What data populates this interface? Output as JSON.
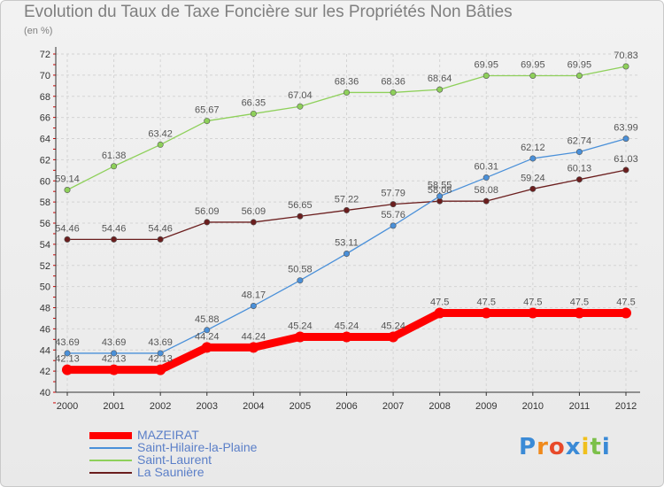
{
  "chart_data": {
    "type": "line",
    "title": "Evolution du Taux de Taxe Foncière sur les Propriétés Non Bâties",
    "subtitle": "(en %)",
    "x": [
      "2000",
      "2001",
      "2002",
      "2003",
      "2004",
      "2005",
      "2006",
      "2007",
      "2008",
      "2009",
      "2010",
      "2011",
      "2012"
    ],
    "ylim": [
      40,
      72
    ],
    "yticks": [
      40,
      42,
      44,
      46,
      48,
      50,
      52,
      54,
      56,
      58,
      60,
      62,
      64,
      66,
      68,
      70,
      72
    ],
    "grid": true,
    "legend_position": "bottom-left",
    "series": [
      {
        "name": "MAZEIRAT",
        "color": "#ff0000",
        "values": [
          42.13,
          42.13,
          42.13,
          44.24,
          44.24,
          45.24,
          45.24,
          45.24,
          47.5,
          47.5,
          47.5,
          47.5,
          47.5
        ]
      },
      {
        "name": "Saint-Hilaire-la-Plaine",
        "color": "#4a90d9",
        "values": [
          43.69,
          43.69,
          43.69,
          45.88,
          48.17,
          50.58,
          53.11,
          55.76,
          58.55,
          60.31,
          62.12,
          62.74,
          63.99
        ]
      },
      {
        "name": "Saint-Laurent",
        "color": "#8ed05a",
        "values": [
          59.14,
          61.38,
          63.42,
          65.67,
          66.35,
          67.04,
          68.36,
          68.36,
          68.64,
          69.95,
          69.95,
          69.95,
          70.83
        ]
      },
      {
        "name": "La Saunière",
        "color": "#6b1e1e",
        "values": [
          54.46,
          54.46,
          54.46,
          56.09,
          56.09,
          56.65,
          57.22,
          57.79,
          58.08,
          58.08,
          59.24,
          60.13,
          61.03
        ]
      }
    ]
  },
  "logo": {
    "letters": [
      {
        "char": "P",
        "color": "#3a8ad6"
      },
      {
        "char": "r",
        "color": "#f08a1c"
      },
      {
        "char": "o",
        "color": "#e84a2a"
      },
      {
        "char": "x",
        "color": "#3a8ad6"
      },
      {
        "char": "i",
        "color": "#f0c01c"
      },
      {
        "char": "t",
        "color": "#7cc04a"
      },
      {
        "char": "i",
        "color": "#3a8ad6"
      }
    ]
  }
}
